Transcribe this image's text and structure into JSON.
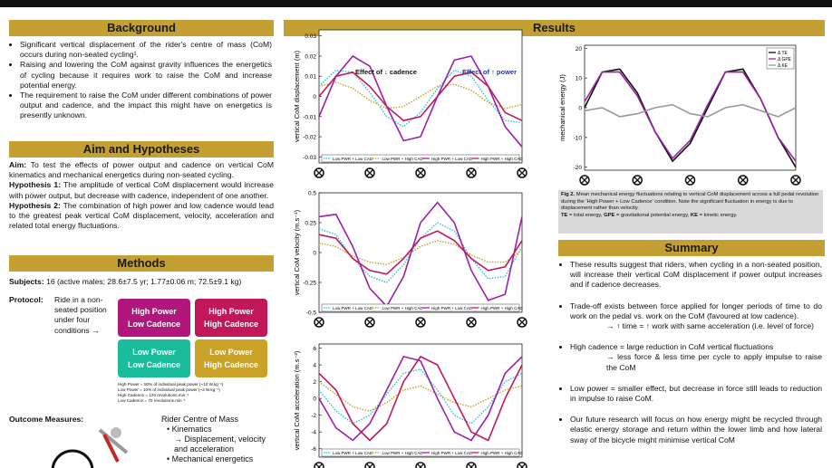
{
  "background": {
    "title": "Background",
    "bullets": [
      "Significant vertical displacement of the rider's centre of mass (CoM) occurs during non-seated cycling¹.",
      "Raising and lowering the CoM against gravity influences the energetics of cycling because it requires work to raise the CoM and increase potential energy.",
      "The requirement to raise the CoM under different combinations of power output and cadence, and the impact this might have on energetics is presently unknown."
    ]
  },
  "aim": {
    "title": "Aim and Hypotheses",
    "paragraphs": [
      {
        "label": "Aim:",
        "text": " To test the effects of power output and cadence on vertical CoM kinematics and mechanical energetics during non-seated cycling."
      },
      {
        "label": "Hypothesis 1:",
        "text": " The amplitude of vertical CoM displacement would increase with power output, but decrease with cadence, independent of one another."
      },
      {
        "label": "Hypothesis 2:",
        "text": " The combination of high power and low cadence would lead to the greatest peak vertical CoM displacement, velocity, acceleration and related total energy fluctuations."
      }
    ]
  },
  "methods": {
    "title": "Methods",
    "subjects_label": "Subjects:",
    "subjects": "16 (active males; 28.6±7.5 yr; 1.77±0.06 m; 72.5±9.1 kg)",
    "protocol_label": "Protocol:",
    "protocol": "Ride in a non-seated position under four conditions →",
    "conditions": [
      [
        "High Power",
        "Low Cadence"
      ],
      [
        "High Power",
        "High Cadence"
      ],
      [
        "Low Power",
        "Low Cadence"
      ],
      [
        "Low Power",
        "High Cadence"
      ]
    ],
    "footnotes": [
      "High Power = 50% of individual peak power (~10 W.kg⁻¹)",
      "Low Power = 10% of individual peak power (~2 W.kg⁻¹)",
      "High Cadence = 120 revolutions.min⁻¹",
      "Low Cadence = 70 revolutions.min⁻¹"
    ],
    "outcome_label": "Outcome Measures:",
    "outcomes": [
      "Rider Centre of Mass",
      "Kinematics",
      "→ Displacement, velocity and acceleration",
      "Mechanical energetics"
    ]
  },
  "results": {
    "title": "Results"
  },
  "chart_data": [
    {
      "type": "line",
      "ylabel": "vertical CoM displacement (m)",
      "categories": [
        null,
        null,
        null,
        null,
        null,
        null,
        null,
        null,
        null,
        null,
        null,
        null,
        null
      ],
      "ylim": [
        -0.033,
        0.033
      ],
      "yticks": [
        -0.03,
        -0.02,
        -0.01,
        0,
        0.01,
        0.02,
        0.03
      ],
      "legend": "bottom",
      "annotations": [
        "Effect of ↓ cadence",
        "Effect of ↑ power"
      ],
      "series": [
        {
          "name": "Low PWR + Low CAD",
          "color": "#27c4d6",
          "line_style": "dotted",
          "values": [
            0.005,
            0.013,
            0.012,
            0.002,
            -0.01,
            -0.015,
            -0.008,
            0.004,
            0.013,
            0.01,
            -0.002,
            -0.012,
            -0.013
          ]
        },
        {
          "name": "Low PWR + High CAD",
          "color": "#c9a227",
          "line_style": "dotted",
          "values": [
            0.005,
            0.007,
            0.004,
            -0.002,
            -0.006,
            -0.005,
            0,
            0.005,
            0.006,
            0.003,
            -0.003,
            -0.006,
            -0.004
          ]
        },
        {
          "name": "High PWR + Low CAD",
          "color": "#9b1fa8",
          "line_style": "solid",
          "values": [
            -0.01,
            0.01,
            0.02,
            0.015,
            -0.005,
            -0.022,
            -0.02,
            0,
            0.018,
            0.02,
            0.005,
            -0.015,
            -0.025
          ]
        },
        {
          "name": "High PWR + High CAD",
          "color": "#c2185b",
          "line_style": "solid",
          "values": [
            0,
            0.01,
            0.012,
            0.005,
            -0.005,
            -0.012,
            -0.01,
            0,
            0.01,
            0.012,
            0.005,
            -0.008,
            -0.012
          ]
        }
      ]
    },
    {
      "type": "line",
      "ylabel": "vertical CoM velocity (m.s⁻¹)",
      "categories": [
        null,
        null,
        null,
        null,
        null,
        null,
        null,
        null,
        null,
        null,
        null,
        null,
        null
      ],
      "ylim": [
        -0.5,
        0.5
      ],
      "yticks": [
        -0.5,
        -0.25,
        0,
        0.25,
        0.5
      ],
      "legend": "bottom",
      "series": [
        {
          "name": "Low PWR + Low CAD",
          "color": "#27c4d6",
          "line_style": "dotted",
          "values": [
            0.2,
            0.15,
            -0.05,
            -0.2,
            -0.25,
            -0.1,
            0.12,
            0.25,
            0.18,
            -0.05,
            -0.22,
            -0.2,
            0.05
          ]
        },
        {
          "name": "Low PWR + High CAD",
          "color": "#c9a227",
          "line_style": "dotted",
          "values": [
            0.08,
            0.05,
            -0.03,
            -0.08,
            -0.1,
            -0.04,
            0.05,
            0.1,
            0.07,
            -0.02,
            -0.08,
            -0.08,
            0.02
          ]
        },
        {
          "name": "High PWR + Low CAD",
          "color": "#9b1fa8",
          "line_style": "solid",
          "values": [
            0.3,
            0.32,
            0.05,
            -0.3,
            -0.45,
            -0.2,
            0.25,
            0.42,
            0.25,
            -0.15,
            -0.4,
            -0.35,
            0.3
          ]
        },
        {
          "name": "High PWR + High CAD",
          "color": "#c2185b",
          "line_style": "solid",
          "values": [
            0.15,
            0.12,
            -0.05,
            -0.15,
            -0.18,
            -0.05,
            0.12,
            0.18,
            0.1,
            -0.05,
            -0.15,
            -0.12,
            0.1
          ]
        }
      ]
    },
    {
      "type": "line",
      "ylabel": "vertical CoM acceleration (m.s⁻²)",
      "categories": [
        null,
        null,
        null,
        null,
        null,
        null,
        null,
        null,
        null,
        null,
        null,
        null,
        null
      ],
      "ylim": [
        -7,
        6.5
      ],
      "yticks": [
        -6,
        -4,
        -2,
        0,
        2,
        4,
        6
      ],
      "legend": "bottom",
      "series": [
        {
          "name": "Low PWR + Low CAD",
          "color": "#27c4d6",
          "line_style": "dotted",
          "values": [
            1,
            -1.5,
            -3,
            -2,
            0.5,
            3,
            3.5,
            1,
            -2,
            -3,
            -1,
            2,
            3
          ]
        },
        {
          "name": "Low PWR + High CAD",
          "color": "#c9a227",
          "line_style": "dotted",
          "values": [
            2,
            0.5,
            -1,
            -1.5,
            -0.5,
            1,
            1.5,
            0.5,
            -0.5,
            -1,
            0,
            1,
            1.5
          ]
        },
        {
          "name": "High PWR + Low CAD",
          "color": "#9b1fa8",
          "line_style": "solid",
          "values": [
            0,
            -3.5,
            -5,
            -3,
            1,
            5,
            4.5,
            0,
            -4,
            -5,
            -2,
            3,
            5
          ]
        },
        {
          "name": "High PWR + High CAD",
          "color": "#c2185b",
          "line_style": "solid",
          "values": [
            3,
            1,
            -3,
            -5,
            -3,
            2,
            5,
            4,
            0,
            -4,
            -5,
            0,
            4
          ]
        }
      ]
    },
    {
      "type": "line",
      "ylabel": "mechanical energy (J)",
      "categories": [
        null,
        null,
        null,
        null,
        null,
        null,
        null,
        null,
        null,
        null,
        null,
        null,
        null
      ],
      "ylim": [
        -21,
        21
      ],
      "yticks": [
        -20,
        -10,
        0,
        10,
        20
      ],
      "legend": "upper right",
      "series": [
        {
          "name": "Δ TE",
          "color": "#111111",
          "line_style": "solid",
          "values": [
            0,
            12,
            13,
            5,
            -8,
            -18,
            -12,
            0,
            12,
            13,
            3,
            -10,
            -20
          ]
        },
        {
          "name": "Δ GPE",
          "color": "#9b1fa8",
          "line_style": "solid",
          "values": [
            2,
            12,
            12,
            4,
            -8,
            -17,
            -11,
            1,
            12,
            12,
            3,
            -10,
            -18
          ]
        },
        {
          "name": "Δ KE",
          "color": "#999999",
          "line_style": "solid",
          "values": [
            -1,
            0,
            -3,
            -2,
            0,
            1,
            -2,
            -3,
            0,
            1,
            -1,
            -3,
            0
          ]
        }
      ]
    }
  ],
  "caption": {
    "label": "Fig 2.",
    "text": " Mean mechanical energy fluctuations relating to vertical CoM displacement across a full pedal revolution during the 'High Power + Low Cadence' condition. Note the significant fluctuation in energy is due to displacement rather than velocity.",
    "defs": [
      {
        "term": "TE",
        "text": " = total energy, "
      },
      {
        "term": "GPE",
        "text": " = gravitational potential energy, "
      },
      {
        "term": "KE",
        "text": " = kinetic energy."
      }
    ]
  },
  "summary": {
    "title": "Summary",
    "bullets": [
      {
        "text": "These results suggest that riders, when cycling in a non-seated position, will increase their vertical CoM displacement if power output increases and if cadence decreases.",
        "sub": []
      },
      {
        "text": "Trade-off exists between force applied for longer periods of time to do work on the pedal vs. work on the CoM (favoured at low cadence).",
        "sub": [
          "→ ↑ time = ↑ work with same acceleration (i.e. level of force)"
        ]
      },
      {
        "text": "High cadence = large reduction in CoM vertical fluctuations",
        "sub": [
          "→ less force & less time per cycle to apply impulse to raise the CoM"
        ]
      },
      {
        "text": "Low power = smaller effect, but decrease in force still leads to reduction in impulse to raise CoM.",
        "sub": []
      },
      {
        "text": "Our future research will focus on how energy might be recycled through elastic energy storage and return within the lower limb and how lateral sway of the bicycle might minimise vertical CoM",
        "sub": []
      }
    ]
  }
}
